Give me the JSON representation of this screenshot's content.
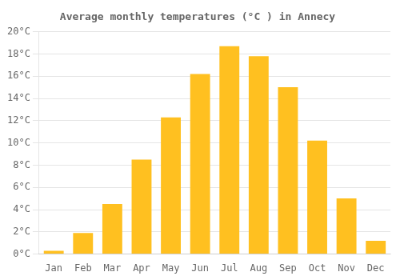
{
  "chart_data": {
    "type": "bar",
    "title": "Average monthly temperatures (°C ) in Annecy",
    "categories": [
      "Jan",
      "Feb",
      "Mar",
      "Apr",
      "May",
      "Jun",
      "Jul",
      "Aug",
      "Sep",
      "Oct",
      "Nov",
      "Dec"
    ],
    "values": [
      0.3,
      1.9,
      4.5,
      8.5,
      12.3,
      16.2,
      18.7,
      17.8,
      15.0,
      10.2,
      5.0,
      1.2
    ],
    "color": "#FFC020",
    "ylim": [
      0,
      20
    ],
    "yticks": [
      {
        "value": 0,
        "label": "0°C"
      },
      {
        "value": 2,
        "label": "2°C"
      },
      {
        "value": 4,
        "label": "4°C"
      },
      {
        "value": 6,
        "label": "6°C"
      },
      {
        "value": 8,
        "label": "8°C"
      },
      {
        "value": 10,
        "label": "10°C"
      },
      {
        "value": 12,
        "label": "12°C"
      },
      {
        "value": 14,
        "label": "14°C"
      },
      {
        "value": 16,
        "label": "16°C"
      },
      {
        "value": 18,
        "label": "18°C"
      },
      {
        "value": 20,
        "label": "20°C"
      }
    ],
    "grid": true
  }
}
